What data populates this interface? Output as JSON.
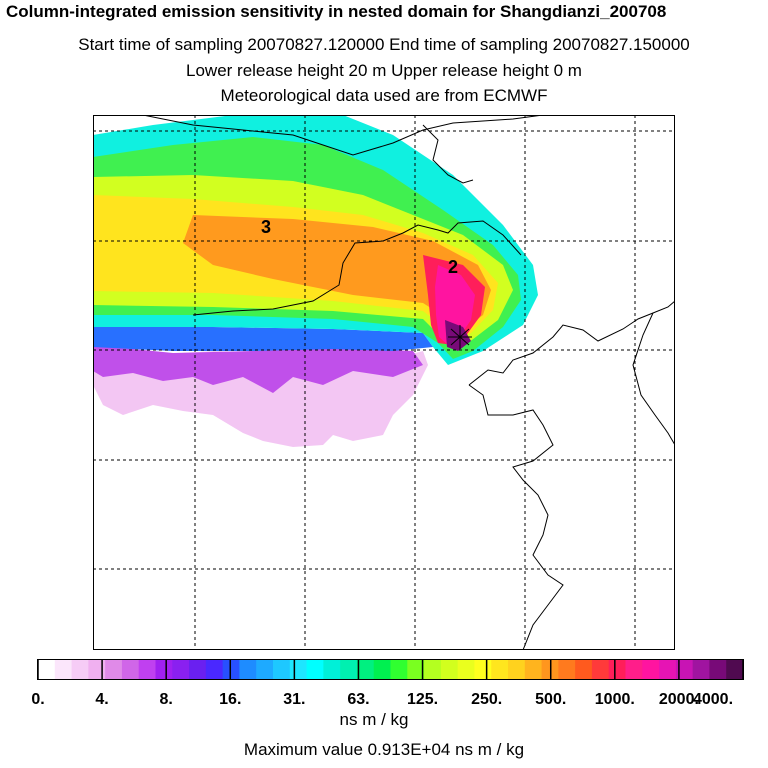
{
  "header": {
    "title": "Column-integrated emission sensitivity in nested domain for Shangdianzi_200708",
    "sampling": "Start time of sampling 20070827.120000     End time of sampling 20070827.150000",
    "release": "Lower release height   20 m          Upper release height    0 m",
    "met": "Meteorological data used are from ECMWF"
  },
  "chart_data": {
    "type": "heatmap",
    "title": "Column-integrated emission sensitivity in nested domain for Shangdianzi_200708",
    "region_labels": [
      "3",
      "2"
    ],
    "colorbar": {
      "tick_labels": [
        "0.",
        "4.",
        "8.",
        "16.",
        "31.",
        "63.",
        "125.",
        "250.",
        "500.",
        "1000.",
        "2000.",
        "4000."
      ],
      "tick_values": [
        0,
        4,
        8,
        16,
        31,
        63,
        125,
        250,
        500,
        1000,
        2000,
        4000
      ],
      "colors": [
        "#ffffff",
        "#fbe6fb",
        "#f6ccf6",
        "#f0b0f0",
        "#e08ae8",
        "#d066e8",
        "#c040f0",
        "#a020f0",
        "#8a20f0",
        "#6a20f0",
        "#4a28ff",
        "#2850ff",
        "#1e8cff",
        "#1eaaff",
        "#1ec8ff",
        "#1ee6ff",
        "#00ffff",
        "#00f0d8",
        "#00f0b0",
        "#00f080",
        "#00f050",
        "#30ff30",
        "#7aff20",
        "#b4ff20",
        "#d2ff1e",
        "#eaff1e",
        "#ffff1e",
        "#ffe61e",
        "#ffd21e",
        "#ffb41e",
        "#ff961e",
        "#ff7a1e",
        "#ff5a1e",
        "#ff3a3a",
        "#ff1e5a",
        "#ff1e8a",
        "#ff14a0",
        "#e614b4",
        "#c814b4",
        "#a014a0",
        "#780a78",
        "#500a50"
      ],
      "units": "ns m / kg"
    },
    "max_value_text": "Maximum value  0.913E+04 ns m / kg",
    "max_value": 9130
  }
}
